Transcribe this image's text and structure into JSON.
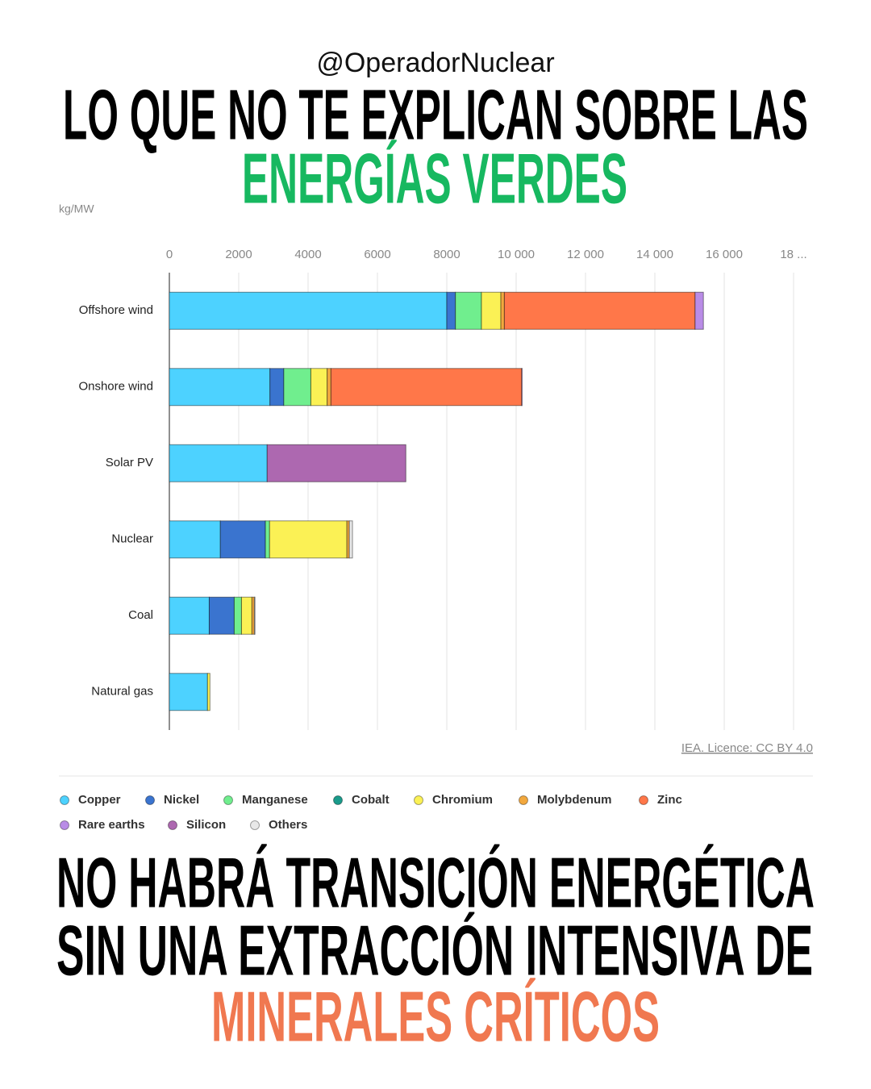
{
  "handle": "@OperadorNuclear",
  "headline": [
    "LO QUE NO TE EXPLICAN SOBRE LAS",
    "ENERGÍAS VERDES"
  ],
  "footer": [
    "NO HABRÁ TRANSICIÓN ENERGÉTICA",
    "SIN UNA EXTRACCIÓN INTENSIVA DE",
    "MINERALES CRÍTICOS"
  ],
  "chart_data": {
    "type": "stacked-barh",
    "unit_label": "kg/MW",
    "source": "IEA. Licence: CC BY 4.0",
    "categories": [
      "Offshore wind",
      "Onshore wind",
      "Solar PV",
      "Nuclear",
      "Coal",
      "Natural gas"
    ],
    "series": [
      {
        "name": "Copper",
        "color": "#4dd2ff",
        "values": [
          8000,
          2900,
          2820,
          1470,
          1150,
          1100
        ]
      },
      {
        "name": "Nickel",
        "color": "#3a74cf",
        "values": [
          250,
          400,
          0,
          1300,
          720,
          0
        ]
      },
      {
        "name": "Manganese",
        "color": "#70ee8e",
        "values": [
          750,
          780,
          0,
          120,
          210,
          0
        ]
      },
      {
        "name": "Cobalt",
        "color": "#1a9b8b",
        "values": [
          0,
          0,
          0,
          0,
          0,
          0
        ]
      },
      {
        "name": "Chromium",
        "color": "#fbf155",
        "values": [
          560,
          470,
          0,
          2230,
          300,
          70
        ]
      },
      {
        "name": "Molybdenum",
        "color": "#f2a83e",
        "values": [
          100,
          110,
          0,
          70,
          70,
          0
        ]
      },
      {
        "name": "Zinc",
        "color": "#ff7749",
        "values": [
          5500,
          5500,
          0,
          0,
          0,
          0
        ]
      },
      {
        "name": "Rare earths",
        "color": "#b98ce6",
        "values": [
          240,
          14,
          0,
          0,
          0,
          0
        ]
      },
      {
        "name": "Silicon",
        "color": "#ad68b0",
        "values": [
          0,
          0,
          4000,
          0,
          0,
          0
        ]
      },
      {
        "name": "Others",
        "color": "#e8e8e8",
        "values": [
          0,
          0,
          0,
          90,
          20,
          0
        ]
      }
    ],
    "xlim": [
      0,
      18000
    ],
    "xticks": [
      0,
      2000,
      4000,
      6000,
      8000,
      {
        "value": 10000,
        "label": "10 000"
      },
      {
        "value": 12000,
        "label": "12 000"
      },
      {
        "value": 14000,
        "label": "14 000"
      },
      {
        "value": 16000,
        "label": "16 000"
      },
      {
        "value": 18000,
        "label": "18 ..."
      }
    ],
    "grid": true
  }
}
